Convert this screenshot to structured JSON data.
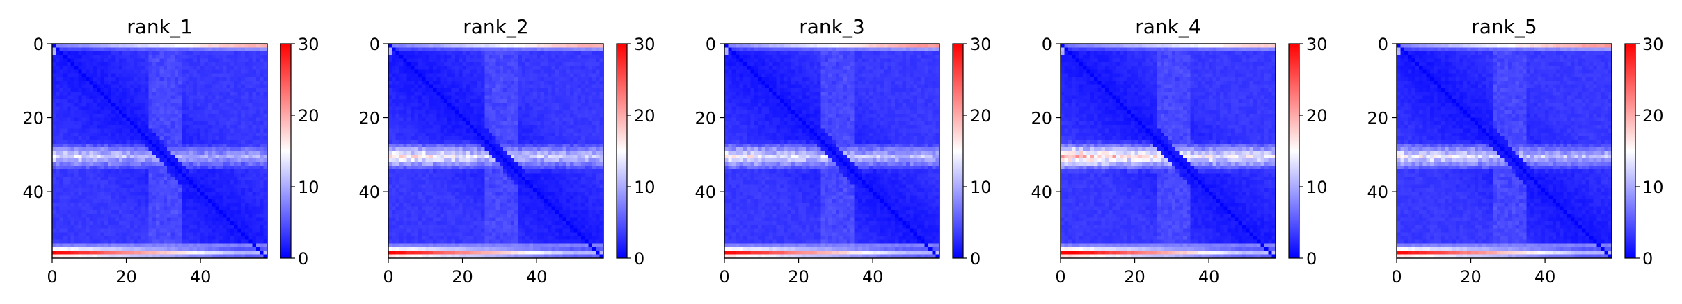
{
  "chart_data": [
    {
      "type": "heatmap",
      "title": "rank_1",
      "n": 58,
      "x_ticks": [
        0,
        20,
        40
      ],
      "y_ticks": [
        0,
        20,
        40
      ],
      "colorbar": {
        "min": 0,
        "max": 30,
        "ticks": [
          0,
          10,
          20,
          30
        ]
      },
      "colormap": [
        "#0000ff",
        "#ffffff",
        "#ff0000"
      ],
      "band_strength": 0.8,
      "band_rows": [
        26,
        34
      ],
      "edge_top": 0.65,
      "edge_bottom": 1.0
    },
    {
      "type": "heatmap",
      "title": "rank_2",
      "n": 58,
      "x_ticks": [
        0,
        20,
        40
      ],
      "y_ticks": [
        0,
        20,
        40
      ],
      "colorbar": {
        "min": 0,
        "max": 30,
        "ticks": [
          0,
          10,
          20,
          30
        ]
      },
      "colormap": [
        "#0000ff",
        "#ffffff",
        "#ff0000"
      ],
      "band_strength": 0.95,
      "band_rows": [
        26,
        34
      ],
      "edge_top": 0.65,
      "edge_bottom": 1.0
    },
    {
      "type": "heatmap",
      "title": "rank_3",
      "n": 58,
      "x_ticks": [
        0,
        20,
        40
      ],
      "y_ticks": [
        0,
        20,
        40
      ],
      "colorbar": {
        "min": 0,
        "max": 30,
        "ticks": [
          0,
          10,
          20,
          30
        ]
      },
      "colormap": [
        "#0000ff",
        "#ffffff",
        "#ff0000"
      ],
      "band_strength": 0.9,
      "band_rows": [
        26,
        34
      ],
      "edge_top": 0.7,
      "edge_bottom": 1.0
    },
    {
      "type": "heatmap",
      "title": "rank_4",
      "n": 58,
      "x_ticks": [
        0,
        20,
        40
      ],
      "y_ticks": [
        0,
        20,
        40
      ],
      "colorbar": {
        "min": 0,
        "max": 30,
        "ticks": [
          0,
          10,
          20,
          30
        ]
      },
      "colormap": [
        "#0000ff",
        "#ffffff",
        "#ff0000"
      ],
      "band_strength": 1.15,
      "band_rows": [
        26,
        34
      ],
      "edge_top": 0.6,
      "edge_bottom": 1.05
    },
    {
      "type": "heatmap",
      "title": "rank_5",
      "n": 58,
      "x_ticks": [
        0,
        20,
        40
      ],
      "y_ticks": [
        0,
        20,
        40
      ],
      "colorbar": {
        "min": 0,
        "max": 30,
        "ticks": [
          0,
          10,
          20,
          30
        ]
      },
      "colormap": [
        "#0000ff",
        "#ffffff",
        "#ff0000"
      ],
      "band_strength": 0.9,
      "band_rows": [
        26,
        34
      ],
      "edge_top": 0.7,
      "edge_bottom": 1.0
    }
  ]
}
